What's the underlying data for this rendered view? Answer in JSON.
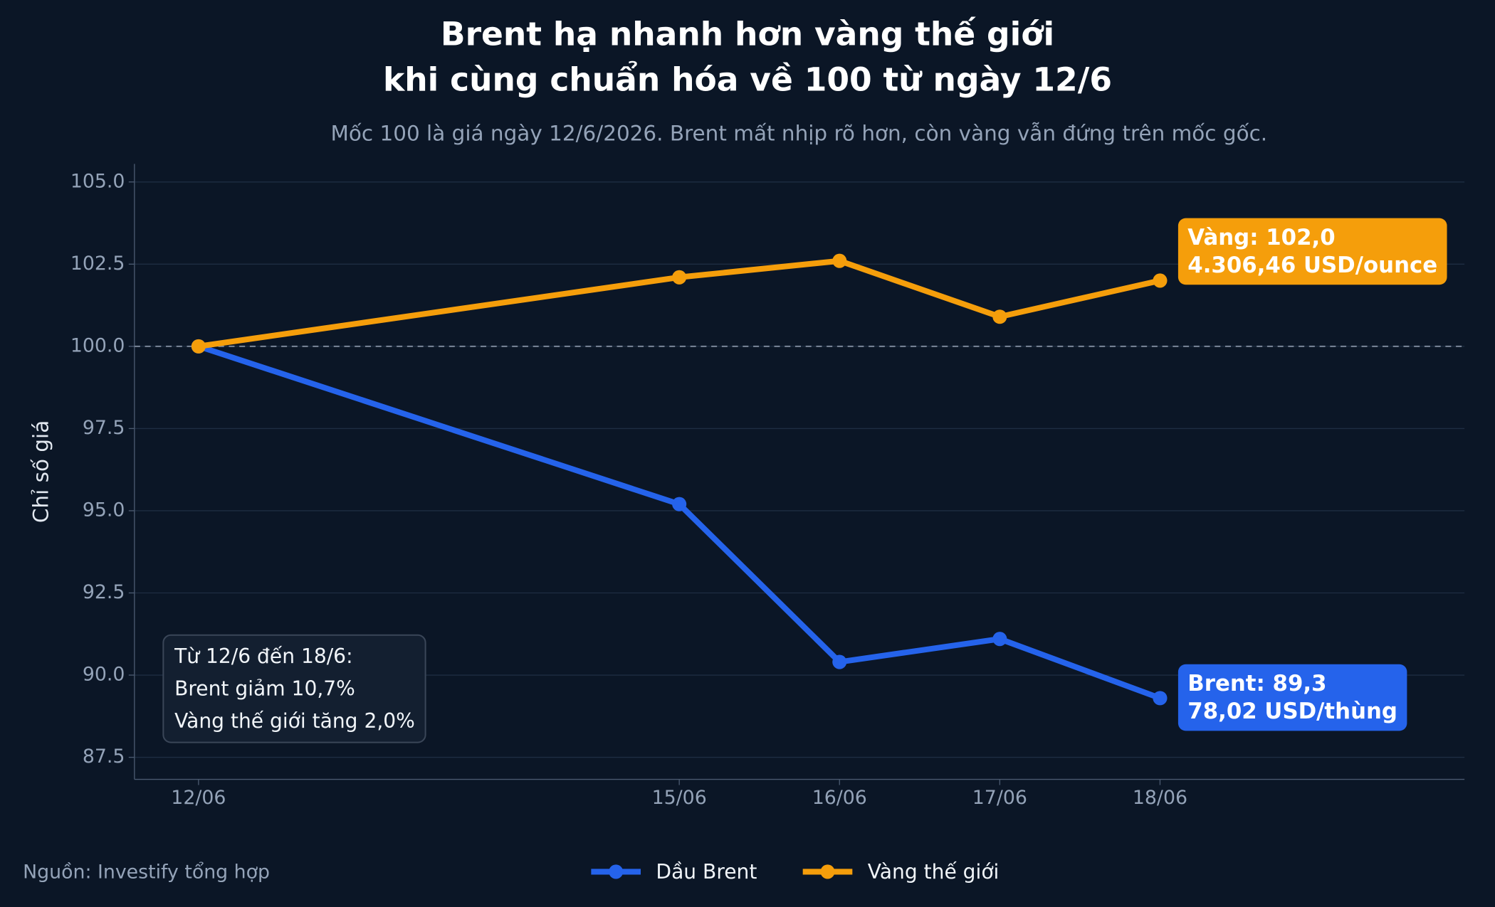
{
  "chart_data": {
    "type": "line",
    "title": [
      "Brent hạ nhanh hơn vàng thế giới",
      "khi cùng chuẩn hóa về 100 từ ngày 12/6"
    ],
    "subtitle": "Mốc 100 là giá ngày 12/6/2026. Brent mất nhịp rõ hơn, còn vàng vẫn đứng trên mốc gốc.",
    "y_label": "Chỉ số giá",
    "source": "Nguồn: Investify tổng hợp",
    "x": [
      12,
      15,
      16,
      17,
      18
    ],
    "xlim": [
      11.6,
      19.9
    ],
    "xticks": [
      {
        "value": 12,
        "label": "12/06"
      },
      {
        "value": 15,
        "label": "15/06"
      },
      {
        "value": 16,
        "label": "16/06"
      },
      {
        "value": 17,
        "label": "17/06"
      },
      {
        "value": 18,
        "label": "18/06"
      }
    ],
    "ylim": [
      86.83,
      105.55
    ],
    "yticks": [
      {
        "value": 87.5,
        "label": "87.5"
      },
      {
        "value": 90,
        "label": "90.0"
      },
      {
        "value": 92.5,
        "label": "92.5"
      },
      {
        "value": 95,
        "label": "95.0"
      },
      {
        "value": 97.5,
        "label": "97.5"
      },
      {
        "value": 100,
        "label": "100.0"
      },
      {
        "value": 102.5,
        "label": "102.5"
      },
      {
        "value": 105,
        "label": "105.0"
      }
    ],
    "grid": true,
    "baseline": 100,
    "series": [
      {
        "name": "Dầu Brent",
        "color": "#2563eb",
        "values": [
          100,
          95.2,
          90.4,
          91.1,
          89.3
        ],
        "end_label": [
          "Brent: 89,3",
          "78,02 USD/thùng"
        ]
      },
      {
        "name": "Vàng thế giới",
        "color": "#f59e0b",
        "values": [
          100,
          102.1,
          102.6,
          100.9,
          102.0
        ],
        "end_label": [
          "Vàng: 102,0",
          "4.306,46 USD/ounce"
        ]
      }
    ],
    "note": [
      "Từ 12/6 đến 18/6:",
      "Brent giảm 10,7%",
      "Vàng thế giới tăng 2,0%"
    ]
  }
}
